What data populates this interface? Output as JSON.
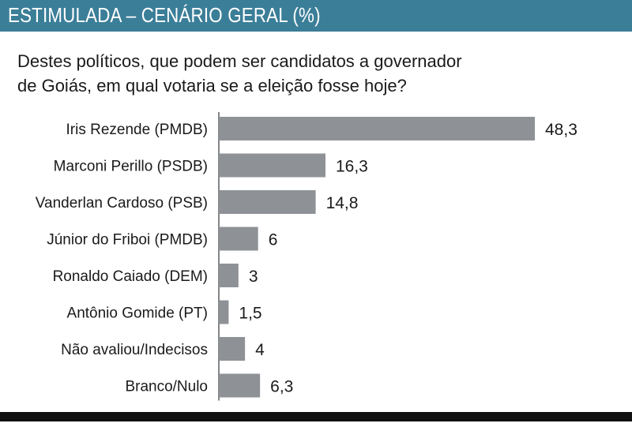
{
  "header": {
    "title": "ESTIMULADA – CENÁRIO GERAL (%)"
  },
  "question": {
    "line1": "Destes políticos, que podem ser candidatos a governador",
    "line2": "de Goiás, em qual votaria se a eleição fosse hoje?"
  },
  "colors": {
    "header_bg": "#3b7e98",
    "bar": "#8e9296",
    "bottom_rule": "#111111"
  },
  "chart_data": {
    "type": "bar",
    "orientation": "horizontal",
    "categories": [
      "Iris Rezende (PMDB)",
      "Marconi Perillo (PSDB)",
      "Vanderlan Cardoso (PSB)",
      "Júnior do Friboi (PMDB)",
      "Ronaldo Caiado (DEM)",
      "Antônio Gomide (PT)",
      "Não avaliou/Indecisos",
      "Branco/Nulo"
    ],
    "values": [
      48.3,
      16.3,
      14.8,
      6,
      3,
      1.5,
      4,
      6.3
    ],
    "value_labels": [
      "48,3",
      "16,3",
      "14,8",
      "6",
      "3",
      "1,5",
      "4",
      "6,3"
    ],
    "title": "",
    "xlabel": "",
    "ylabel": "",
    "grid": false,
    "legend": "none"
  }
}
